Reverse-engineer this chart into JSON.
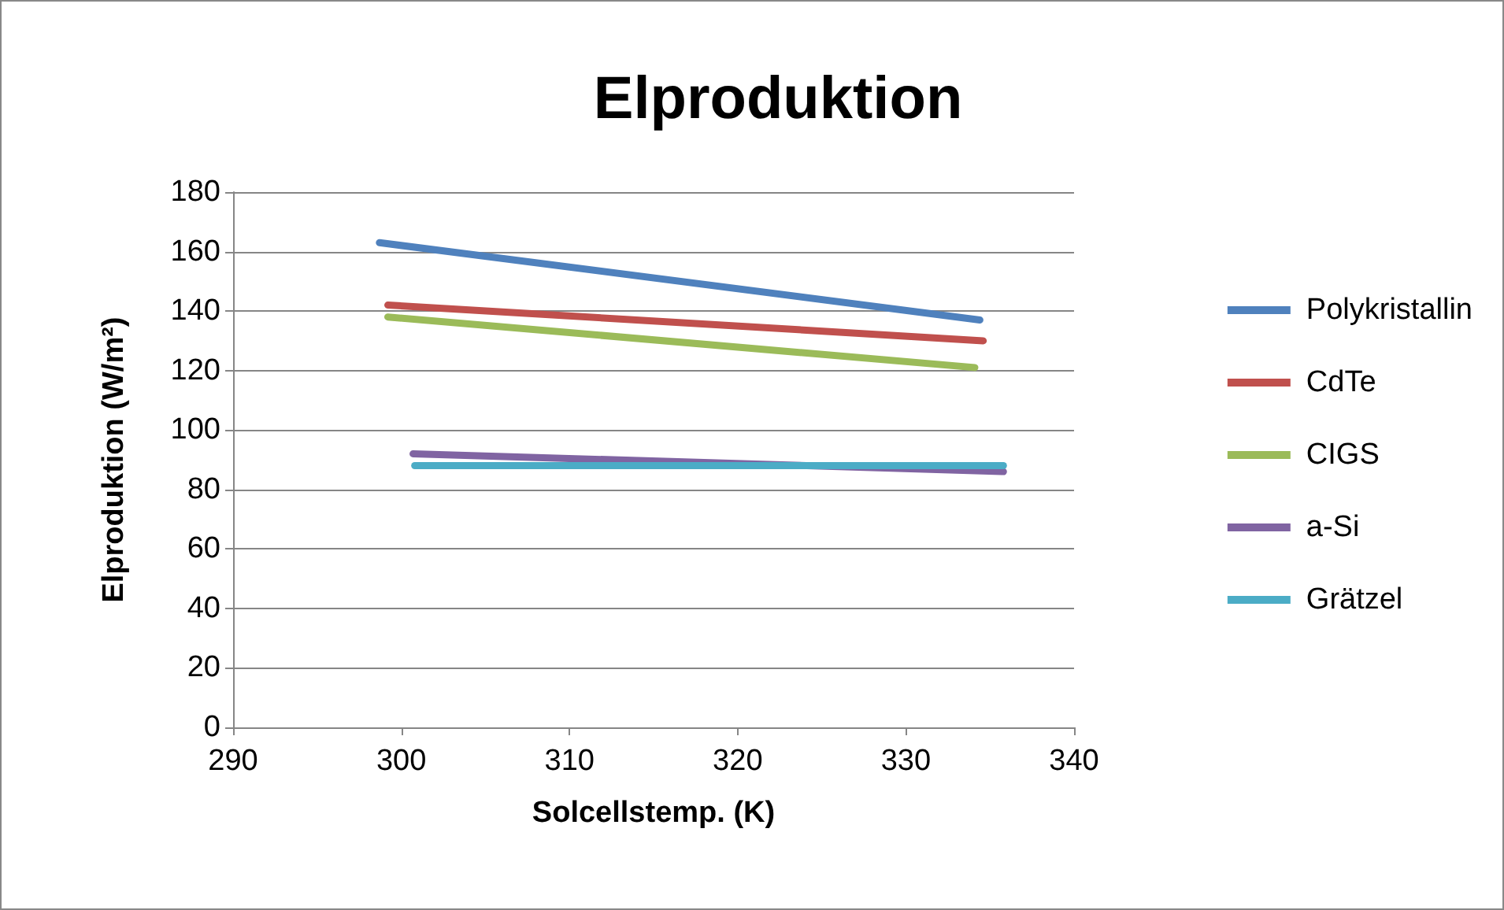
{
  "chart_data": {
    "type": "line",
    "title": "Elproduktion",
    "xlabel": "Solcellstemp. (K)",
    "ylabel": "Elproduktion (W/m²)",
    "xlim": [
      290,
      340
    ],
    "xticks": [
      290,
      300,
      310,
      320,
      330,
      340
    ],
    "ylim": [
      0,
      180
    ],
    "yticks": [
      0,
      20,
      40,
      60,
      80,
      100,
      120,
      140,
      160,
      180
    ],
    "grid": "y",
    "legend": "right",
    "marker": "none",
    "line_style": "solid",
    "series": [
      {
        "name": "Polykristallin",
        "color": "#4f81bd",
        "x": [
          298.7,
          334.4
        ],
        "values": [
          163,
          137
        ]
      },
      {
        "name": "CdTe",
        "color": "#c0504d",
        "x": [
          299.2,
          334.6
        ],
        "values": [
          142,
          130
        ]
      },
      {
        "name": "CIGS",
        "color": "#9bbb59",
        "x": [
          299.2,
          334.1
        ],
        "values": [
          138,
          121
        ]
      },
      {
        "name": "a-Si",
        "color": "#8064a2",
        "x": [
          300.7,
          335.8
        ],
        "values": [
          92,
          86
        ]
      },
      {
        "name": "Grätzel",
        "color": "#4bacc6",
        "x": [
          300.8,
          335.8
        ],
        "values": [
          88,
          88
        ]
      }
    ]
  }
}
